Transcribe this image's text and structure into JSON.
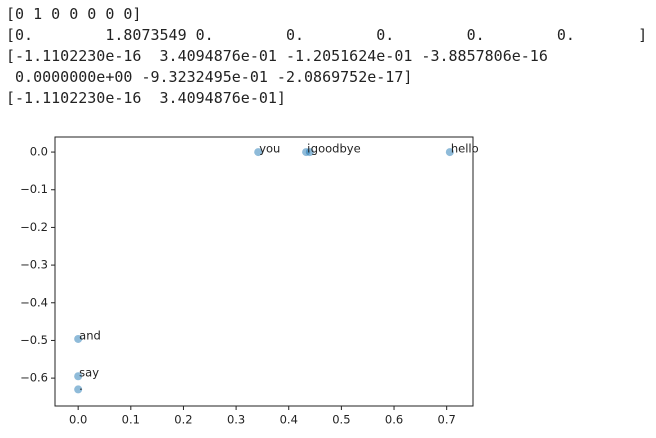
{
  "output_lines": [
    "[0 1 0 0 0 0 0]",
    "[0.        1.8073549 0.        0.        0.        0.        0.       ]",
    "[-1.1102230e-16  3.4094876e-01 -1.2051624e-01 -3.8857806e-16",
    " 0.0000000e+00 -9.3232495e-01 -2.0869752e-17]",
    "[-1.1102230e-16  3.4094876e-01]"
  ],
  "chart_data": {
    "type": "scatter",
    "color": "#1f77b4",
    "alpha": 0.5,
    "x": [
      0.342,
      0.0,
      0.44,
      0.0,
      0.433,
      0.706,
      0.0
    ],
    "values": [
      0.0,
      -0.595,
      0.0,
      -0.496,
      0.0,
      0.0,
      -0.63
    ],
    "point_labels": [
      "you",
      "say",
      "goodbye",
      "and",
      "i",
      "hello",
      "."
    ],
    "xlim": [
      -0.044,
      0.75
    ],
    "ylim": [
      -0.674,
      0.04
    ],
    "xticks": [
      {
        "value": 0,
        "label": "0.0"
      },
      0.1,
      0.2,
      0.3,
      0.4,
      0.5,
      0.6,
      0.7
    ],
    "yticks": [
      {
        "value": 0,
        "label": "0.0"
      },
      {
        "value": -0.1,
        "label": "−0.1"
      },
      {
        "value": -0.2,
        "label": "−0.2"
      },
      {
        "value": -0.3,
        "label": "−0.3"
      },
      {
        "value": -0.4,
        "label": "−0.4"
      },
      {
        "value": -0.5,
        "label": "−0.5"
      },
      {
        "value": -0.6,
        "label": "−0.6"
      }
    ]
  }
}
